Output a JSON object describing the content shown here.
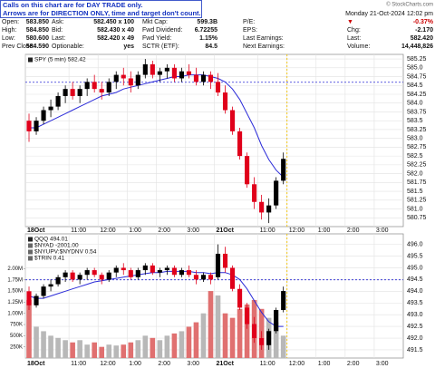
{
  "note": [
    "Calls on this chart are for DAY TRADE only.",
    "Arrows are for DIRECTION ONLY, time and target don't count."
  ],
  "watermark": "© StockCharts.com",
  "header": {
    "date": "Monday  21-Oct-2024  12:02 pm",
    "columns": [
      {
        "rows": [
          [
            "Open:",
            "583.850"
          ],
          [
            "High:",
            "584.850"
          ],
          [
            "Low:",
            "580.600"
          ],
          [
            "Prev Close:",
            "584.590"
          ]
        ]
      },
      {
        "rows": [
          [
            "Ask:",
            "582.450 x 100"
          ],
          [
            "Bid:",
            "582.430 x 40"
          ],
          [
            "Last:",
            "582.420 x 49"
          ],
          [
            "Optionable:",
            "yes"
          ]
        ]
      },
      {
        "rows": [
          [
            "Mkt Cap:",
            "599.3B"
          ],
          [
            "Fwd Dividend:",
            "6.72255"
          ],
          [
            "Fwd Yield:",
            "1.15%"
          ],
          [
            "SCTR (ETF):",
            "84.5"
          ]
        ]
      },
      {
        "rows": [
          [
            "P/E:"
          ],
          [
            "EPS:"
          ],
          [
            "Last Earnings:"
          ],
          [
            "Next Earnings:"
          ]
        ]
      },
      {
        "rows": [
          [
            "▼",
            "-0.37%"
          ],
          [
            "Chg:",
            "-2.170"
          ],
          [
            "Last:",
            "582.420"
          ],
          [
            "Volume:",
            "14,448,826"
          ]
        ],
        "accent_color": "#cc0000"
      }
    ]
  },
  "chart_data": [
    {
      "type": "candlestick",
      "legend": [
        "SPY (5 min) 582.42"
      ],
      "xlim": [
        0,
        52
      ],
      "xticks": [
        {
          "value": 0,
          "label": "18Oct"
        },
        {
          "value": 6,
          "label": "11:00"
        },
        {
          "value": 10,
          "label": "12:00"
        },
        {
          "value": 14,
          "label": "1:00"
        },
        {
          "value": 18,
          "label": "2:00"
        },
        {
          "value": 22,
          "label": "3:00"
        },
        {
          "value": 26,
          "label": "21Oct"
        },
        {
          "value": 32,
          "label": "11:00"
        },
        {
          "value": 36,
          "label": "12:00"
        },
        {
          "value": 40,
          "label": "1:00"
        },
        {
          "value": 44,
          "label": "2:00"
        },
        {
          "value": 48,
          "label": "3:00"
        }
      ],
      "ylim": [
        580.5,
        585.38
      ],
      "yticks": [
        585.25,
        {
          "value": 585,
          "label": "585.0"
        },
        584.75,
        584.5,
        584.25,
        {
          "value": 584,
          "label": "584.0"
        },
        583.75,
        583.5,
        583.25,
        {
          "value": 583,
          "label": "583.0"
        },
        582.75,
        582.5,
        582.25,
        {
          "value": 582,
          "label": "582.0"
        },
        581.75,
        581.5,
        581.25,
        {
          "value": 581,
          "label": "581.0"
        },
        580.75
      ],
      "grid": true,
      "up_color": "#000000",
      "down_color": "#e0001b",
      "open": [
        583.5,
        583.2,
        583.5,
        583.8,
        583.9,
        584.2,
        584.4,
        584.2,
        584.4,
        584.6,
        584.4,
        584.3,
        584.6,
        584.8,
        584.7,
        584.5,
        584.8,
        585.1,
        584.8,
        584.9,
        585.0,
        584.7,
        584.9,
        584.8,
        584.6,
        584.8,
        584.6,
        584.3,
        583.8,
        583.2,
        582.5,
        581.7,
        581.2,
        580.9,
        581.1,
        581.8
      ],
      "high": [
        583.7,
        583.6,
        583.9,
        584.1,
        584.3,
        584.5,
        584.6,
        584.5,
        584.7,
        584.8,
        584.6,
        584.7,
        584.9,
        585.0,
        584.9,
        584.9,
        585.25,
        585.2,
        585.0,
        585.1,
        585.1,
        585.0,
        585.1,
        585.0,
        584.9,
        584.9,
        584.85,
        584.5,
        583.9,
        583.3,
        582.6,
        581.9,
        581.4,
        581.3,
        581.9,
        582.6
      ],
      "low": [
        582.9,
        583.1,
        583.4,
        583.6,
        583.8,
        584.0,
        584.1,
        584.0,
        584.2,
        584.3,
        584.1,
        584.2,
        584.4,
        584.5,
        584.3,
        584.4,
        584.7,
        584.7,
        584.6,
        584.7,
        584.6,
        584.6,
        584.7,
        584.5,
        584.5,
        584.4,
        584.2,
        583.7,
        583.1,
        582.4,
        581.6,
        581.0,
        580.7,
        580.6,
        581.0,
        581.7
      ],
      "close": [
        583.2,
        583.5,
        583.8,
        583.9,
        584.2,
        584.4,
        584.2,
        584.4,
        584.6,
        584.4,
        584.3,
        584.6,
        584.8,
        584.7,
        584.5,
        584.8,
        585.1,
        584.8,
        584.9,
        585.0,
        584.7,
        584.9,
        584.8,
        584.6,
        584.8,
        584.6,
        584.3,
        583.8,
        583.2,
        582.5,
        581.7,
        581.2,
        580.9,
        581.1,
        581.8,
        582.42
      ],
      "ma": {
        "color": "#2b2bd8",
        "values": [
          583.3,
          583.3,
          583.4,
          583.5,
          583.6,
          583.7,
          583.8,
          583.9,
          584.0,
          584.1,
          584.2,
          584.25,
          584.3,
          584.4,
          584.45,
          584.5,
          584.55,
          584.6,
          584.65,
          584.7,
          584.75,
          584.75,
          584.8,
          584.8,
          584.8,
          584.75,
          584.7,
          584.6,
          584.4,
          584.1,
          583.7,
          583.3,
          582.8,
          582.4,
          582.1,
          581.9
        ]
      },
      "reference_value": 584.59,
      "reference_color": "#2b2bd8",
      "marker_x": 36,
      "marker_color": "#f0c000"
    },
    {
      "type": "candlestick",
      "legend": [
        "QQQ 494.01",
        "$NYAD -2001.00",
        "$NYUPV:$NYDNV 0.54",
        "$TRIN 0.41"
      ],
      "xlim": [
        0,
        52
      ],
      "xticks": [
        {
          "value": 0,
          "label": "18Oct"
        },
        {
          "value": 6,
          "label": "11:00"
        },
        {
          "value": 10,
          "label": "12:00"
        },
        {
          "value": 14,
          "label": "1:00"
        },
        {
          "value": 18,
          "label": "2:00"
        },
        {
          "value": 22,
          "label": "3:00"
        },
        {
          "value": 26,
          "label": "21Oct"
        },
        {
          "value": 32,
          "label": "11:00"
        },
        {
          "value": 36,
          "label": "12:00"
        },
        {
          "value": 40,
          "label": "1:00"
        },
        {
          "value": 44,
          "label": "2:00"
        },
        {
          "value": 48,
          "label": "3:00"
        }
      ],
      "ylim": [
        491.15,
        496.45
      ],
      "yticks": [
        {
          "value": 496,
          "label": "496.0"
        },
        495.5,
        {
          "value": 495,
          "label": "495.0"
        },
        494.5,
        {
          "value": 494,
          "label": "494.0"
        },
        493.5,
        {
          "value": 493,
          "label": "493.0"
        },
        492.5,
        {
          "value": 492,
          "label": "492.0"
        },
        491.5
      ],
      "y2lim": [
        0,
        2780000
      ],
      "y2ticks": [
        {
          "value": 2000000,
          "label": "2.00M"
        },
        {
          "value": 1750000,
          "label": "1.75M"
        },
        {
          "value": 1500000,
          "label": "1.50M"
        },
        {
          "value": 1250000,
          "label": "1.25M"
        },
        {
          "value": 1000000,
          "label": "1.00M"
        },
        {
          "value": 750000,
          "label": "750K"
        },
        {
          "value": 500000,
          "label": "500K"
        },
        {
          "value": 250000,
          "label": "250K"
        }
      ],
      "grid": true,
      "up_color": "#000000",
      "down_color": "#e0001b",
      "open": [
        494.0,
        493.4,
        493.8,
        494.2,
        494.3,
        494.6,
        494.8,
        494.5,
        494.7,
        494.9,
        494.7,
        494.5,
        494.8,
        495.0,
        494.9,
        494.6,
        494.9,
        495.1,
        494.8,
        494.9,
        495.0,
        494.7,
        494.9,
        494.7,
        494.5,
        494.7,
        494.6,
        495.6,
        495.0,
        494.1,
        493.3,
        492.6,
        492.0,
        491.7,
        492.3,
        493.2
      ],
      "high": [
        494.2,
        493.9,
        494.3,
        494.5,
        494.7,
        494.9,
        494.9,
        494.8,
        495.0,
        495.0,
        494.8,
        494.9,
        495.1,
        495.2,
        495.0,
        495.0,
        495.2,
        495.2,
        495.0,
        495.1,
        495.1,
        495.0,
        495.1,
        494.9,
        494.8,
        494.8,
        496.0,
        495.9,
        495.1,
        494.3,
        493.5,
        492.9,
        492.3,
        492.4,
        493.3,
        494.2
      ],
      "low": [
        493.2,
        493.3,
        493.7,
        494.0,
        494.2,
        494.4,
        494.4,
        494.3,
        494.5,
        494.6,
        494.3,
        494.4,
        494.6,
        494.7,
        494.5,
        494.5,
        494.7,
        494.7,
        494.6,
        494.7,
        494.6,
        494.6,
        494.6,
        494.3,
        494.4,
        494.3,
        494.5,
        494.8,
        494.0,
        493.2,
        492.4,
        491.8,
        491.5,
        491.5,
        492.2,
        493.1
      ],
      "close": [
        493.4,
        493.8,
        494.2,
        494.3,
        494.6,
        494.8,
        494.5,
        494.7,
        494.9,
        494.7,
        494.5,
        494.8,
        495.0,
        494.9,
        494.6,
        494.9,
        495.1,
        494.8,
        494.9,
        495.0,
        494.7,
        494.9,
        494.7,
        494.5,
        494.7,
        494.5,
        495.6,
        495.0,
        494.1,
        493.3,
        492.6,
        492.0,
        491.7,
        492.3,
        493.2,
        494.01
      ],
      "ma": {
        "color": "#2b2bd8",
        "values": [
          493.8,
          493.7,
          493.7,
          493.8,
          493.9,
          494.0,
          494.1,
          494.2,
          494.3,
          494.4,
          494.45,
          494.5,
          494.55,
          494.6,
          494.65,
          494.7,
          494.75,
          494.8,
          494.8,
          494.85,
          494.85,
          494.85,
          494.85,
          494.8,
          494.8,
          494.75,
          494.8,
          494.8,
          494.7,
          494.5,
          494.1,
          493.6,
          493.1,
          492.7,
          492.5,
          492.5
        ]
      },
      "volume": {
        "axis": "y2",
        "color": "#b8b8b8",
        "down_color": "#e07070",
        "values": [
          1300000,
          700000,
          600000,
          500000,
          450000,
          400000,
          350000,
          400000,
          300000,
          350000,
          250000,
          300000,
          280000,
          300000,
          350000,
          400000,
          500000,
          450000,
          400000,
          500000,
          550000,
          600000,
          700000,
          800000,
          1000000,
          1500000,
          1400000,
          1000000,
          900000,
          1100000,
          1200000,
          1300000,
          1100000,
          900000,
          800000,
          500000
        ]
      },
      "reference_value": 494.49,
      "reference_color": "#2b2bd8",
      "marker_x": 36,
      "marker_color": "#f0c000"
    }
  ]
}
